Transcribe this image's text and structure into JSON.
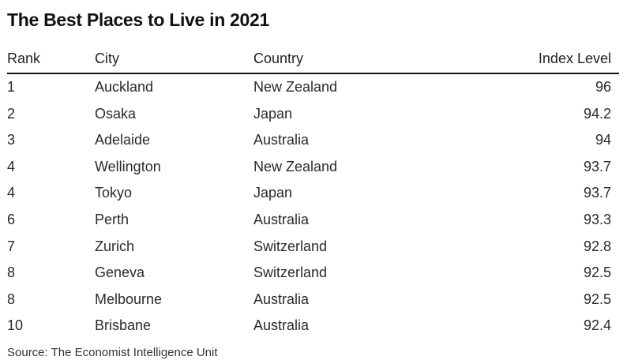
{
  "chart_data": {
    "type": "table",
    "title": "The Best Places to Live in 2021",
    "columns": [
      "Rank",
      "City",
      "Country",
      "Index Level"
    ],
    "rows": [
      {
        "rank": "1",
        "city": "Auckland",
        "country": "New Zealand",
        "index": "96"
      },
      {
        "rank": "2",
        "city": "Osaka",
        "country": "Japan",
        "index": "94.2"
      },
      {
        "rank": "3",
        "city": "Adelaide",
        "country": "Australia",
        "index": "94"
      },
      {
        "rank": "4",
        "city": "Wellington",
        "country": "New Zealand",
        "index": "93.7"
      },
      {
        "rank": "4",
        "city": "Tokyo",
        "country": "Japan",
        "index": "93.7"
      },
      {
        "rank": "6",
        "city": "Perth",
        "country": "Australia",
        "index": "93.3"
      },
      {
        "rank": "7",
        "city": "Zurich",
        "country": "Switzerland",
        "index": "92.8"
      },
      {
        "rank": "8",
        "city": "Geneva",
        "country": "Switzerland",
        "index": "92.5"
      },
      {
        "rank": "8",
        "city": "Melbourne",
        "country": "Australia",
        "index": "92.5"
      },
      {
        "rank": "10",
        "city": "Brisbane",
        "country": "Australia",
        "index": "92.4"
      }
    ],
    "source": "Source: The Economist Intelligence Unit"
  }
}
